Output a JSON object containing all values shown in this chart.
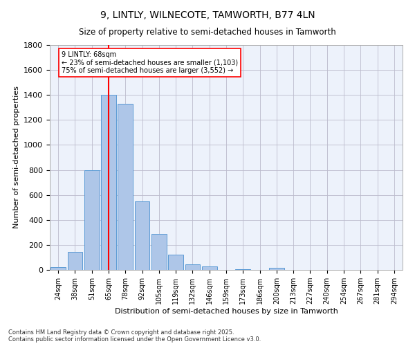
{
  "title1": "9, LINTLY, WILNECOTE, TAMWORTH, B77 4LN",
  "title2": "Size of property relative to semi-detached houses in Tamworth",
  "xlabel": "Distribution of semi-detached houses by size in Tamworth",
  "ylabel": "Number of semi-detached properties",
  "categories": [
    "24sqm",
    "38sqm",
    "51sqm",
    "65sqm",
    "78sqm",
    "92sqm",
    "105sqm",
    "119sqm",
    "132sqm",
    "146sqm",
    "159sqm",
    "173sqm",
    "186sqm",
    "200sqm",
    "213sqm",
    "227sqm",
    "240sqm",
    "254sqm",
    "267sqm",
    "281sqm",
    "294sqm"
  ],
  "bar_heights": [
    20,
    145,
    800,
    1400,
    1330,
    550,
    290,
    120,
    45,
    25,
    0,
    8,
    0,
    15,
    0,
    0,
    0,
    0,
    0,
    0,
    0
  ],
  "annotation_text_line1": "9 LINTLY: 68sqm",
  "annotation_text_line2": "← 23% of semi-detached houses are smaller (1,103)",
  "annotation_text_line3": "75% of semi-detached houses are larger (3,552) →",
  "bar_color": "#aec6e8",
  "bar_edgecolor": "#5b9bd5",
  "vline_color": "red",
  "bg_color": "#edf2fb",
  "grid_color": "#bbbbcc",
  "footnote1": "Contains HM Land Registry data © Crown copyright and database right 2025.",
  "footnote2": "Contains public sector information licensed under the Open Government Licence v3.0.",
  "ylim": [
    0,
    1800
  ],
  "yticks": [
    0,
    200,
    400,
    600,
    800,
    1000,
    1200,
    1400,
    1600,
    1800
  ]
}
